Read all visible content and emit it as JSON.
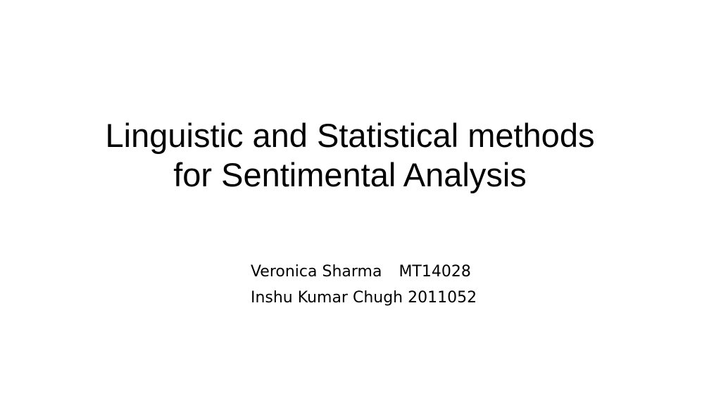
{
  "slide": {
    "title_lines": [
      "Linguistic and Statistical methods",
      "for Sentimental Analysis"
    ],
    "authors": [
      {
        "name": "Veronica Sharma",
        "id": "MT14028"
      },
      {
        "name": "Inshu Kumar Chugh",
        "id": "2011052"
      }
    ],
    "background_color": "#ffffff",
    "text_color": "#000000"
  }
}
